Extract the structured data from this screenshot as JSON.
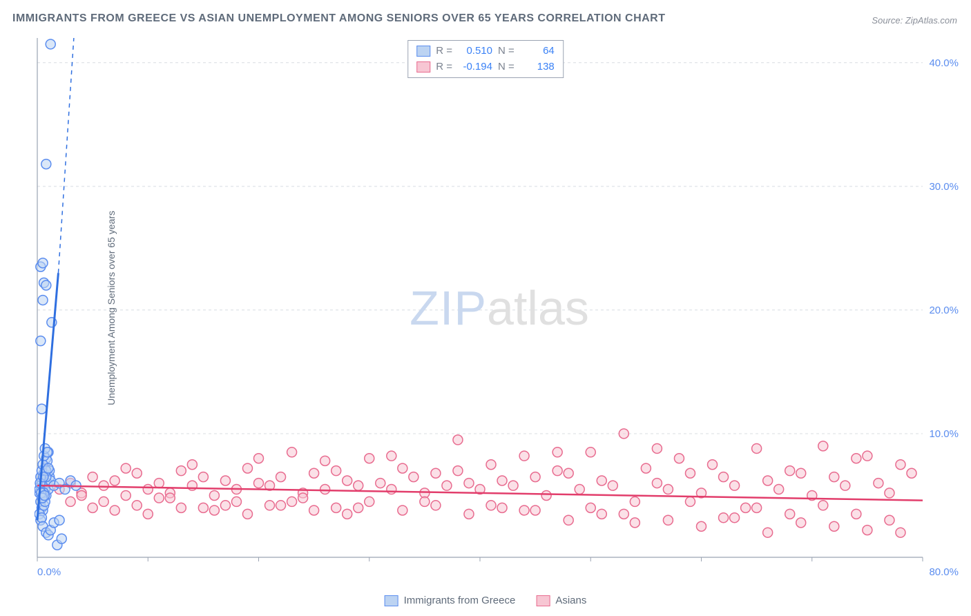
{
  "title": "IMMIGRANTS FROM GREECE VS ASIAN UNEMPLOYMENT AMONG SENIORS OVER 65 YEARS CORRELATION CHART",
  "source_label": "Source:",
  "source_site": "ZipAtlas.com",
  "ylabel": "Unemployment Among Seniors over 65 years",
  "watermark_zip": "ZIP",
  "watermark_atlas": "atlas",
  "chart": {
    "type": "scatter",
    "xlim": [
      0,
      80
    ],
    "ylim": [
      0,
      42
    ],
    "x_ticks": [
      0,
      10,
      20,
      30,
      40,
      50,
      60,
      70,
      80
    ],
    "x_tick_labels_shown": {
      "0": "0.0%",
      "80": "80.0%"
    },
    "y_ticks": [
      10,
      20,
      30,
      40
    ],
    "y_tick_labels": {
      "10": "10.0%",
      "20": "20.0%",
      "30": "30.0%",
      "40": "40.0%"
    },
    "background_color": "#ffffff",
    "grid_color": "#d8dce2",
    "grid_dash": "4,4",
    "axis_color": "#9aa3b2",
    "marker_radius": 7,
    "marker_stroke_width": 1.5,
    "series": [
      {
        "name": "Immigrants from Greece",
        "fill_color": "#bcd3f2",
        "stroke_color": "#5b8def",
        "fill_opacity": 0.55,
        "r_label": "R =",
        "r_value": "0.510",
        "n_label": "N =",
        "n_value": "64",
        "trend": {
          "x1": 0,
          "y1": 3,
          "x2": 3.3,
          "y2": 42,
          "solid_until_x": 1.9,
          "solid_until_y": 23,
          "color": "#2f6fe0",
          "width": 3,
          "dash": "6,6"
        },
        "points": [
          [
            0.2,
            5.2
          ],
          [
            0.3,
            5.8
          ],
          [
            0.4,
            6.2
          ],
          [
            0.5,
            5.0
          ],
          [
            0.6,
            6.8
          ],
          [
            0.7,
            7.2
          ],
          [
            0.8,
            8.0
          ],
          [
            0.9,
            7.8
          ],
          [
            1.0,
            8.5
          ],
          [
            1.1,
            6.5
          ],
          [
            0.3,
            4.5
          ],
          [
            0.4,
            4.0
          ],
          [
            0.5,
            3.8
          ],
          [
            0.6,
            4.2
          ],
          [
            0.7,
            5.5
          ],
          [
            0.8,
            5.0
          ],
          [
            0.9,
            6.0
          ],
          [
            1.0,
            5.5
          ],
          [
            1.1,
            7.0
          ],
          [
            1.2,
            6.2
          ],
          [
            0.2,
            3.5
          ],
          [
            0.3,
            3.0
          ],
          [
            0.4,
            3.2
          ],
          [
            0.5,
            4.8
          ],
          [
            0.6,
            5.2
          ],
          [
            0.7,
            4.5
          ],
          [
            0.8,
            6.5
          ],
          [
            1.5,
            5.8
          ],
          [
            2.0,
            6.0
          ],
          [
            2.5,
            5.5
          ],
          [
            3.0,
            6.2
          ],
          [
            3.5,
            5.8
          ],
          [
            0.5,
            2.5
          ],
          [
            0.8,
            2.0
          ],
          [
            1.0,
            1.8
          ],
          [
            1.2,
            2.2
          ],
          [
            1.5,
            2.8
          ],
          [
            2.0,
            3.0
          ],
          [
            0.3,
            6.5
          ],
          [
            0.4,
            7.0
          ],
          [
            0.5,
            7.5
          ],
          [
            0.6,
            8.2
          ],
          [
            0.7,
            8.8
          ],
          [
            0.8,
            7.0
          ],
          [
            0.9,
            8.5
          ],
          [
            1.0,
            7.2
          ],
          [
            0.3,
            17.5
          ],
          [
            0.4,
            12.0
          ],
          [
            0.5,
            20.8
          ],
          [
            0.6,
            22.2
          ],
          [
            0.8,
            22.0
          ],
          [
            0.3,
            23.5
          ],
          [
            0.5,
            23.8
          ],
          [
            1.3,
            19.0
          ],
          [
            0.8,
            31.8
          ],
          [
            1.2,
            41.5
          ],
          [
            1.8,
            1.0
          ],
          [
            2.2,
            1.5
          ],
          [
            0.2,
            5.5
          ],
          [
            0.25,
            6.0
          ],
          [
            0.35,
            5.2
          ],
          [
            0.45,
            4.8
          ],
          [
            0.55,
            6.5
          ],
          [
            0.65,
            5.0
          ]
        ]
      },
      {
        "name": "Asians",
        "fill_color": "#f7c6d3",
        "stroke_color": "#e86b8f",
        "fill_opacity": 0.55,
        "r_label": "R =",
        "r_value": "-0.194",
        "n_label": "N =",
        "n_value": "138",
        "trend": {
          "x1": 0,
          "y1": 5.8,
          "x2": 80,
          "y2": 4.6,
          "color": "#e23d6b",
          "width": 2.5
        },
        "points": [
          [
            2,
            5.5
          ],
          [
            3,
            6.0
          ],
          [
            4,
            5.2
          ],
          [
            5,
            6.5
          ],
          [
            6,
            5.8
          ],
          [
            7,
            6.2
          ],
          [
            8,
            5.0
          ],
          [
            9,
            6.8
          ],
          [
            10,
            5.5
          ],
          [
            11,
            6.0
          ],
          [
            12,
            5.2
          ],
          [
            13,
            7.0
          ],
          [
            14,
            5.8
          ],
          [
            15,
            6.5
          ],
          [
            16,
            5.0
          ],
          [
            17,
            6.2
          ],
          [
            18,
            5.5
          ],
          [
            19,
            7.2
          ],
          [
            20,
            6.0
          ],
          [
            21,
            5.8
          ],
          [
            22,
            6.5
          ],
          [
            23,
            8.5
          ],
          [
            24,
            5.2
          ],
          [
            25,
            6.8
          ],
          [
            26,
            5.5
          ],
          [
            27,
            7.0
          ],
          [
            28,
            6.2
          ],
          [
            29,
            5.8
          ],
          [
            30,
            8.0
          ],
          [
            31,
            6.0
          ],
          [
            32,
            5.5
          ],
          [
            33,
            7.2
          ],
          [
            34,
            6.5
          ],
          [
            35,
            5.2
          ],
          [
            36,
            6.8
          ],
          [
            37,
            5.8
          ],
          [
            38,
            9.5
          ],
          [
            39,
            6.0
          ],
          [
            40,
            5.5
          ],
          [
            41,
            7.5
          ],
          [
            42,
            6.2
          ],
          [
            43,
            5.8
          ],
          [
            44,
            8.2
          ],
          [
            45,
            6.5
          ],
          [
            46,
            5.0
          ],
          [
            47,
            7.0
          ],
          [
            48,
            6.8
          ],
          [
            49,
            5.5
          ],
          [
            50,
            8.5
          ],
          [
            51,
            6.2
          ],
          [
            52,
            5.8
          ],
          [
            53,
            10.0
          ],
          [
            54,
            4.5
          ],
          [
            55,
            7.2
          ],
          [
            56,
            6.0
          ],
          [
            57,
            5.5
          ],
          [
            58,
            8.0
          ],
          [
            59,
            6.8
          ],
          [
            60,
            5.2
          ],
          [
            61,
            7.5
          ],
          [
            62,
            6.5
          ],
          [
            63,
            5.8
          ],
          [
            64,
            4.0
          ],
          [
            65,
            8.8
          ],
          [
            66,
            6.2
          ],
          [
            67,
            5.5
          ],
          [
            68,
            7.0
          ],
          [
            69,
            6.8
          ],
          [
            70,
            5.0
          ],
          [
            71,
            9.0
          ],
          [
            72,
            6.5
          ],
          [
            73,
            5.8
          ],
          [
            74,
            3.5
          ],
          [
            75,
            8.2
          ],
          [
            76,
            6.0
          ],
          [
            77,
            5.2
          ],
          [
            78,
            7.5
          ],
          [
            79,
            6.8
          ],
          [
            3,
            4.5
          ],
          [
            5,
            4.0
          ],
          [
            8,
            7.2
          ],
          [
            11,
            4.8
          ],
          [
            14,
            7.5
          ],
          [
            17,
            4.2
          ],
          [
            20,
            8.0
          ],
          [
            23,
            4.5
          ],
          [
            26,
            7.8
          ],
          [
            29,
            4.0
          ],
          [
            32,
            8.2
          ],
          [
            35,
            4.5
          ],
          [
            38,
            7.0
          ],
          [
            41,
            4.2
          ],
          [
            44,
            3.8
          ],
          [
            47,
            8.5
          ],
          [
            50,
            4.0
          ],
          [
            53,
            3.5
          ],
          [
            56,
            8.8
          ],
          [
            59,
            4.5
          ],
          [
            62,
            3.2
          ],
          [
            65,
            4.0
          ],
          [
            68,
            3.5
          ],
          [
            71,
            4.2
          ],
          [
            74,
            8.0
          ],
          [
            77,
            3.0
          ],
          [
            54,
            2.8
          ],
          [
            57,
            3.0
          ],
          [
            60,
            2.5
          ],
          [
            63,
            3.2
          ],
          [
            66,
            2.0
          ],
          [
            69,
            2.8
          ],
          [
            72,
            2.5
          ],
          [
            75,
            2.2
          ],
          [
            78,
            2.0
          ],
          [
            48,
            3.0
          ],
          [
            51,
            3.5
          ],
          [
            45,
            3.8
          ],
          [
            42,
            4.0
          ],
          [
            39,
            3.5
          ],
          [
            36,
            4.2
          ],
          [
            33,
            3.8
          ],
          [
            30,
            4.5
          ],
          [
            27,
            4.0
          ],
          [
            24,
            4.8
          ],
          [
            21,
            4.2
          ],
          [
            18,
            4.5
          ],
          [
            15,
            4.0
          ],
          [
            12,
            4.8
          ],
          [
            9,
            4.2
          ],
          [
            6,
            4.5
          ],
          [
            4,
            5.0
          ],
          [
            7,
            3.8
          ],
          [
            10,
            3.5
          ],
          [
            13,
            4.0
          ],
          [
            16,
            3.8
          ],
          [
            19,
            3.5
          ],
          [
            22,
            4.2
          ],
          [
            25,
            3.8
          ],
          [
            28,
            3.5
          ]
        ]
      }
    ]
  },
  "bottom_legend": [
    {
      "label": "Immigrants from Greece",
      "fill": "#bcd3f2",
      "stroke": "#5b8def"
    },
    {
      "label": "Asians",
      "fill": "#f7c6d3",
      "stroke": "#e86b8f"
    }
  ]
}
